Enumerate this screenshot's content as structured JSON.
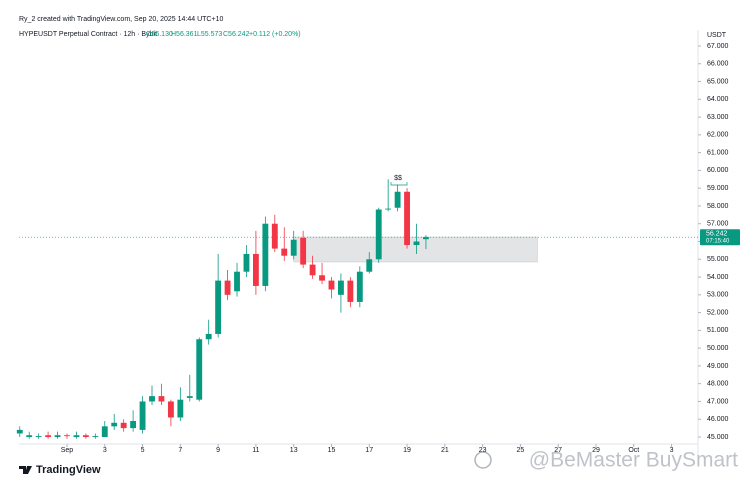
{
  "header": {
    "credit": "Ry_2 created with TradingView.com, Sep 20, 2025 14:44 UTC+10",
    "symbol": "HYPEUSDT Perpetual Contract · 12h · Bybit",
    "open": "O56.130",
    "high": "H56.361",
    "low": "L55.573",
    "close": "C56.242",
    "change": "+0.112 (+0.20%)"
  },
  "footer": {
    "logo": "TradingView",
    "watermark": "@BeMaster BuySmart"
  },
  "chart_data": {
    "type": "candlestick",
    "currency": "USDT",
    "up_color": "#089981",
    "down_color": "#f23645",
    "x": [
      -1.5,
      -1,
      -0.5,
      0,
      0.5,
      1,
      1.5,
      2,
      2.5,
      3,
      3.5,
      4,
      4.5,
      5,
      5.5,
      6,
      6.5,
      7,
      7.5,
      8,
      8.5,
      9,
      9.5,
      10,
      10.5,
      11,
      11.5,
      12,
      12.5,
      13,
      13.5,
      14,
      14.5,
      15,
      15.5,
      16,
      16.5,
      17,
      17.5,
      18,
      18.5,
      19,
      19.5,
      20
    ],
    "open": [
      45.2,
      45.0,
      45.0,
      45.1,
      45.0,
      45.1,
      45.0,
      45.1,
      45.0,
      45.0,
      45.6,
      45.8,
      45.5,
      45.4,
      47.0,
      47.3,
      47.0,
      46.1,
      47.2,
      47.1,
      50.5,
      50.8,
      53.8,
      53.2,
      54.3,
      55.3,
      53.5,
      57.0,
      55.6,
      55.2,
      56.2,
      54.7,
      54.1,
      53.8,
      53.0,
      53.8,
      52.6,
      54.3,
      55.0,
      57.8,
      57.9,
      58.8,
      55.8,
      56.13
    ],
    "high": [
      45.6,
      45.3,
      45.2,
      45.3,
      45.3,
      45.2,
      45.3,
      45.2,
      45.2,
      45.9,
      46.3,
      46.0,
      46.5,
      47.3,
      47.9,
      48.0,
      47.1,
      47.8,
      48.5,
      50.6,
      51.6,
      55.3,
      54.4,
      54.8,
      55.8,
      56.6,
      57.4,
      57.5,
      56.8,
      56.6,
      56.6,
      55.2,
      54.8,
      54.0,
      54.2,
      54.0,
      54.6,
      55.4,
      57.9,
      59.5,
      59.2,
      59.0,
      57.0,
      56.361
    ],
    "low": [
      45.0,
      44.9,
      44.9,
      44.9,
      44.9,
      44.9,
      44.9,
      44.9,
      44.9,
      45.0,
      45.4,
      45.3,
      45.3,
      45.2,
      46.8,
      46.8,
      45.6,
      45.9,
      47.0,
      47.0,
      50.2,
      50.6,
      52.7,
      52.9,
      54.0,
      53.0,
      53.2,
      55.4,
      54.9,
      55.0,
      54.5,
      53.9,
      53.6,
      52.8,
      52.0,
      52.3,
      52.3,
      54.2,
      54.8,
      57.7,
      57.7,
      55.6,
      55.3,
      55.573
    ],
    "close": [
      45.4,
      45.1,
      45.05,
      45.0,
      45.1,
      45.05,
      45.1,
      45.0,
      45.05,
      45.6,
      45.8,
      45.5,
      45.9,
      47.0,
      47.3,
      47.0,
      46.1,
      47.1,
      47.3,
      50.5,
      50.8,
      53.8,
      53.0,
      54.3,
      55.3,
      53.5,
      57.0,
      55.6,
      55.2,
      56.1,
      54.7,
      54.1,
      53.8,
      53.3,
      53.8,
      52.6,
      54.3,
      55.0,
      57.8,
      57.85,
      58.8,
      55.8,
      56.0,
      56.242
    ],
    "xlim": [
      -1.54,
      34.4
    ],
    "ylim": [
      44.5,
      67.5
    ],
    "xticks": [
      {
        "value": 1,
        "label": "Sep"
      },
      3,
      5,
      7,
      9,
      11,
      13,
      15,
      17,
      19,
      21,
      23,
      25,
      27,
      29,
      {
        "value": 31,
        "label": "Oct"
      },
      {
        "value": 33,
        "label": "3"
      }
    ],
    "yticks": [
      {
        "value": 45,
        "label": "45.000"
      },
      {
        "value": 46,
        "label": "46.000"
      },
      {
        "value": 47,
        "label": "47.000"
      },
      {
        "value": 48,
        "label": "48.000"
      },
      {
        "value": 49,
        "label": "49.000"
      },
      {
        "value": 50,
        "label": "50.000"
      },
      {
        "value": 51,
        "label": "51.000"
      },
      {
        "value": 52,
        "label": "52.000"
      },
      {
        "value": 53,
        "label": "53.000"
      },
      {
        "value": 54,
        "label": "54.000"
      },
      {
        "value": 55,
        "label": "55.000"
      },
      {
        "value": 56,
        "label": "56.000"
      },
      {
        "value": 57,
        "label": "57.000"
      },
      {
        "value": 58,
        "label": "58.000"
      },
      {
        "value": 59,
        "label": "59.000"
      },
      {
        "value": 60,
        "label": "60.000"
      },
      {
        "value": 61,
        "label": "61.000"
      },
      {
        "value": 62,
        "label": "62.000"
      },
      {
        "value": 63,
        "label": "63.000"
      },
      {
        "value": 64,
        "label": "64.000"
      },
      {
        "value": 65,
        "label": "65.000"
      },
      {
        "value": 66,
        "label": "66.000"
      },
      {
        "value": 67,
        "label": "67.000"
      }
    ],
    "zone": {
      "x": [
        13,
        25.9
      ],
      "y": [
        54.85,
        56.25
      ]
    },
    "annotation": "$$",
    "last_price": {
      "value": 56.242,
      "countdown": "07:15:40"
    }
  }
}
